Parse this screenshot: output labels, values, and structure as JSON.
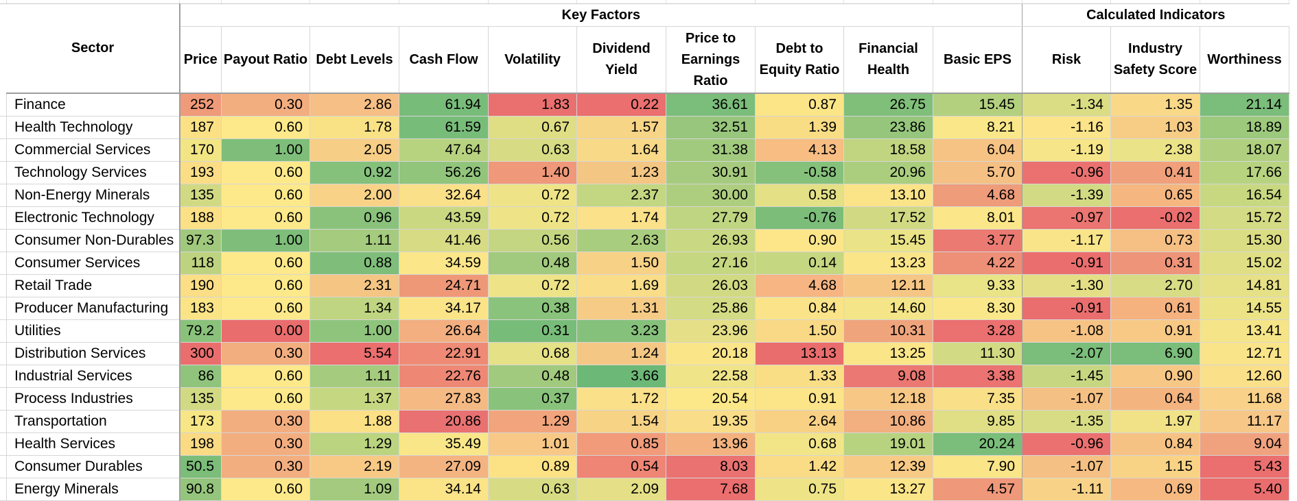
{
  "header": {
    "sector": "Sector",
    "group_key": "Key Factors",
    "group_calc": "Calculated Indicators"
  },
  "columns": [
    "Price",
    "Payout Ratio",
    "Debt Levels",
    "Cash Flow",
    "Volatility",
    "Dividend Yield",
    "Price to Earnings Ratio",
    "Debt to Equity Ratio",
    "Financial Health",
    "Basic EPS",
    "Risk",
    "Industry Safety Score",
    "Worthiness"
  ],
  "rows": [
    {
      "sector": "Finance",
      "values": [
        "252",
        "0.30",
        "2.86",
        "61.94",
        "1.83",
        "0.22",
        "36.61",
        "0.87",
        "26.75",
        "15.45",
        "-1.34",
        "1.35",
        "21.14"
      ],
      "colors": [
        "#ef9a79",
        "#f3ae80",
        "#f6bf85",
        "#78bc79",
        "#ea7070",
        "#ea6f6e",
        "#7bbd7a",
        "#fbe586",
        "#80bf7a",
        "#b3d07f",
        "#dbdd84",
        "#f9d888",
        "#7bbd7a"
      ]
    },
    {
      "sector": "Health Technology",
      "values": [
        "187",
        "0.60",
        "1.78",
        "61.59",
        "0.67",
        "1.57",
        "32.51",
        "1.39",
        "23.86",
        "8.21",
        "-1.16",
        "1.03",
        "18.89"
      ],
      "colors": [
        "#fbe184",
        "#fde98a",
        "#f9e286",
        "#78bc79",
        "#dfde85",
        "#f7d587",
        "#98c67c",
        "#f9dd85",
        "#95c67c",
        "#fae789",
        "#fbe489",
        "#f7cd86",
        "#9dc97d"
      ]
    },
    {
      "sector": "Commercial Services",
      "values": [
        "170",
        "1.00",
        "2.05",
        "47.64",
        "0.63",
        "1.64",
        "31.38",
        "4.13",
        "18.58",
        "6.04",
        "-1.19",
        "2.38",
        "18.07"
      ],
      "colors": [
        "#f2e584",
        "#7fbe7a",
        "#f7ce86",
        "#b8d380",
        "#d7dc84",
        "#f8d988",
        "#a1ca7e",
        "#f7bd83",
        "#c1d581",
        "#f6c384",
        "#f6e689",
        "#ebe388",
        "#b0d07f"
      ]
    },
    {
      "sector": "Technology Services",
      "values": [
        "193",
        "0.60",
        "0.92",
        "56.26",
        "1.40",
        "1.23",
        "30.91",
        "-0.58",
        "20.96",
        "5.70",
        "-0.96",
        "0.41",
        "17.66"
      ],
      "colors": [
        "#fbdd85",
        "#fde98a",
        "#86c17b",
        "#92c57c",
        "#f0987a",
        "#f4c683",
        "#a6cb7e",
        "#85c17a",
        "#aace7e",
        "#f5c084",
        "#ea7170",
        "#f0a07a",
        "#b8d380"
      ]
    },
    {
      "sector": "Non-Energy Minerals",
      "values": [
        "135",
        "0.60",
        "2.00",
        "32.64",
        "0.72",
        "2.37",
        "30.00",
        "0.58",
        "13.10",
        "4.68",
        "-1.39",
        "0.65",
        "16.54"
      ],
      "colors": [
        "#d1da83",
        "#fde98a",
        "#f8d387",
        "#fae088",
        "#eee487",
        "#c3d681",
        "#aece7f",
        "#e3e086",
        "#fbe388",
        "#ef9c7a",
        "#d2db84",
        "#f5b680",
        "#c8d881"
      ]
    },
    {
      "sector": "Electronic Technology",
      "values": [
        "188",
        "0.60",
        "0.96",
        "43.59",
        "0.72",
        "1.74",
        "27.79",
        "-0.76",
        "17.52",
        "8.01",
        "-0.97",
        "-0.02",
        "15.72"
      ],
      "colors": [
        "#fbe085",
        "#fde98a",
        "#8ac27b",
        "#cbd882",
        "#eee487",
        "#fbe189",
        "#c0d581",
        "#7bbd79",
        "#d1da83",
        "#fbe689",
        "#ea7571",
        "#ea6f6e",
        "#d3db84"
      ]
    },
    {
      "sector": "Consumer Non-Durables",
      "values": [
        "97.3",
        "1.00",
        "1.11",
        "41.46",
        "0.56",
        "2.63",
        "26.93",
        "0.90",
        "15.45",
        "3.77",
        "-1.17",
        "0.73",
        "15.30"
      ],
      "colors": [
        "#a0c97d",
        "#7fbe7a",
        "#a5cb7e",
        "#d6db84",
        "#c4d681",
        "#a9cd7e",
        "#c9d882",
        "#fce689",
        "#eae387",
        "#eb7b72",
        "#f9e489",
        "#f6bf83",
        "#dbdd84"
      ]
    },
    {
      "sector": "Consumer Services",
      "values": [
        "118",
        "0.60",
        "0.88",
        "34.59",
        "0.48",
        "1.50",
        "27.16",
        "0.14",
        "13.23",
        "4.22",
        "-0.91",
        "0.31",
        "15.02"
      ],
      "colors": [
        "#bed380",
        "#fde98a",
        "#7fbe7a",
        "#fbe689",
        "#a2ca7e",
        "#f7d186",
        "#c6d781",
        "#c6d781",
        "#fbe589",
        "#ee8f77",
        "#ea6e6e",
        "#ee9479",
        "#e1df85"
      ]
    },
    {
      "sector": "Retail Trade",
      "values": [
        "190",
        "0.60",
        "2.31",
        "24.71",
        "0.72",
        "1.69",
        "26.03",
        "4.68",
        "12.11",
        "9.33",
        "-1.30",
        "2.70",
        "14.81"
      ],
      "colors": [
        "#fbde85",
        "#fde98a",
        "#f5c584",
        "#ef9878",
        "#eee487",
        "#f9dd88",
        "#d1da83",
        "#f6b582",
        "#f6c685",
        "#e9e487",
        "#e4df86",
        "#d8dc84",
        "#e6e186"
      ]
    },
    {
      "sector": "Producer Manufacturing",
      "values": [
        "183",
        "0.60",
        "1.34",
        "34.17",
        "0.38",
        "1.31",
        "25.86",
        "0.84",
        "14.60",
        "8.30",
        "-0.91",
        "0.61",
        "14.55"
      ],
      "colors": [
        "#fbe486",
        "#fde98a",
        "#c0d581",
        "#fbe487",
        "#8ac37b",
        "#f5cb85",
        "#d3db84",
        "#fae388",
        "#f4e588",
        "#fae789",
        "#ea6e6e",
        "#f5b27f",
        "#ece387"
      ]
    },
    {
      "sector": "Utilities",
      "values": [
        "79.2",
        "0.00",
        "1.00",
        "26.64",
        "0.31",
        "3.23",
        "23.96",
        "1.50",
        "10.31",
        "3.28",
        "-1.08",
        "0.91",
        "13.41"
      ],
      "colors": [
        "#8ac27b",
        "#ea6d6d",
        "#8fc47c",
        "#f3af80",
        "#78bc79",
        "#86c17b",
        "#e5e087",
        "#f9d986",
        "#f0a47c",
        "#eb7070",
        "#f6c384",
        "#f7c985",
        "#f5e588"
      ]
    },
    {
      "sector": "Distribution Services",
      "values": [
        "300",
        "0.30",
        "5.54",
        "22.91",
        "0.68",
        "1.24",
        "20.18",
        "13.13",
        "13.25",
        "11.30",
        "-2.07",
        "6.90",
        "12.71"
      ],
      "colors": [
        "#ea6e6e",
        "#f3ae80",
        "#ea6f6e",
        "#ee8a75",
        "#e5e186",
        "#f4c884",
        "#fbe589",
        "#ea6d6d",
        "#fbe589",
        "#d2db84",
        "#7bbd7a",
        "#7bbd7a",
        "#fae48a"
      ]
    },
    {
      "sector": "Industrial Services",
      "values": [
        "86",
        "0.60",
        "1.11",
        "22.76",
        "0.48",
        "3.66",
        "22.58",
        "1.33",
        "9.08",
        "3.38",
        "-1.45",
        "0.90",
        "12.60"
      ],
      "colors": [
        "#90c47c",
        "#fde98a",
        "#a5cb7e",
        "#ee8875",
        "#a2ca7e",
        "#6cb876",
        "#f0e488",
        "#f9de86",
        "#eb7872",
        "#eb7371",
        "#c7d781",
        "#f7c785",
        "#fbe08a"
      ]
    },
    {
      "sector": "Process Industries",
      "values": [
        "135",
        "0.60",
        "1.37",
        "27.83",
        "0.37",
        "1.72",
        "20.54",
        "0.91",
        "12.18",
        "7.35",
        "-1.07",
        "0.64",
        "11.68"
      ],
      "colors": [
        "#d1da83",
        "#fde98a",
        "#c6d781",
        "#f5b983",
        "#89c27b",
        "#fae089",
        "#fce889",
        "#fce489",
        "#f6c785",
        "#f9df87",
        "#f5c083",
        "#f4b47f",
        "#f9d189"
      ]
    },
    {
      "sector": "Transportation",
      "values": [
        "173",
        "0.30",
        "1.88",
        "20.86",
        "1.29",
        "1.54",
        "19.35",
        "2.64",
        "10.86",
        "9.85",
        "-1.35",
        "1.97",
        "11.17"
      ],
      "colors": [
        "#f6e685",
        "#f3ae80",
        "#fbe085",
        "#ea7171",
        "#f2a57c",
        "#f7d386",
        "#f9dd88",
        "#f8d185",
        "#f2af7f",
        "#e0df85",
        "#d8dc84",
        "#f1e288",
        "#f7c788"
      ]
    },
    {
      "sector": "Health Services",
      "values": [
        "198",
        "0.30",
        "1.29",
        "35.49",
        "1.01",
        "0.85",
        "13.96",
        "0.68",
        "19.01",
        "20.24",
        "-0.96",
        "0.84",
        "9.04"
      ],
      "colors": [
        "#fbda84",
        "#f3ae80",
        "#bbd480",
        "#f9e688",
        "#f8c886",
        "#f19b7a",
        "#f3b27f",
        "#f2e588",
        "#b7d380",
        "#7bbd7a",
        "#ea7170",
        "#f6c284",
        "#f0a27f"
      ]
    },
    {
      "sector": "Consumer Durables",
      "values": [
        "50.5",
        "0.30",
        "2.19",
        "27.09",
        "0.89",
        "0.54",
        "8.03",
        "1.42",
        "12.39",
        "7.90",
        "-1.07",
        "1.15",
        "5.43"
      ],
      "colors": [
        "#7bbd79",
        "#f3ae80",
        "#f7c985",
        "#f4b481",
        "#fce285",
        "#ee8575",
        "#ea7271",
        "#f9dc85",
        "#f7ca85",
        "#fae589",
        "#f5c083",
        "#f9d385",
        "#ea6f6e"
      ]
    },
    {
      "sector": "Energy Minerals",
      "values": [
        "90.8",
        "0.60",
        "1.09",
        "34.14",
        "0.63",
        "2.09",
        "7.68",
        "0.75",
        "13.27",
        "4.57",
        "-1.11",
        "0.69",
        "5.40"
      ],
      "colors": [
        "#95c57c",
        "#fde98a",
        "#a3ca7e",
        "#fbe387",
        "#d7dc84",
        "#e5e087",
        "#ea6f6e",
        "#eee487",
        "#fbe589",
        "#ef987a",
        "#f8d387",
        "#f5b981",
        "#ea6e6e"
      ]
    }
  ]
}
